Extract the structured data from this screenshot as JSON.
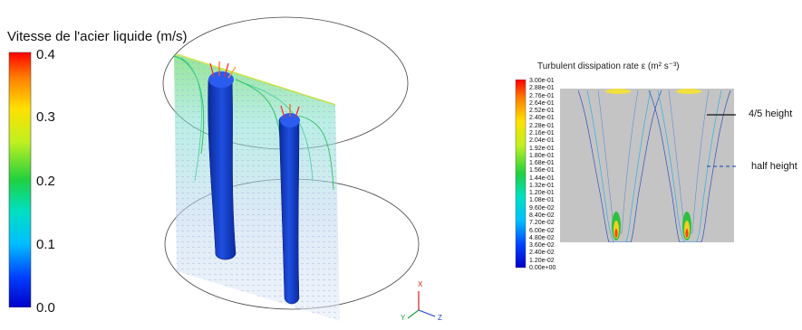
{
  "left_panel": {
    "colorbar_title": "Vitesse de l'acier liquide (m/s)",
    "ticks": [
      "0.4",
      "0.3",
      "0.2",
      "0.1",
      "0.0"
    ]
  },
  "right_panel": {
    "title": "Turbulent dissipation rate ε  (m² s⁻³)",
    "ticks": [
      "3.00e-01",
      "2.88e-01",
      "2.76e-01",
      "2.64e-01",
      "2.52e-01",
      "2.40e-01",
      "2.28e-01",
      "2.16e-01",
      "2.04e-01",
      "1.92e-01",
      "1.80e-01",
      "1.68e-01",
      "1.56e-01",
      "1.44e-01",
      "1.32e-01",
      "1.20e-01",
      "1.08e-01",
      "9.60e-02",
      "8.40e-02",
      "7.20e-02",
      "6.00e-02",
      "4.80e-02",
      "3.60e-02",
      "2.40e-02",
      "1.20e-02",
      "0.00e+00"
    ],
    "annotation_solid": "4/5 height",
    "annotation_dashed": "half height"
  },
  "axes_triad": {
    "x": "X",
    "y": "Y",
    "z": "Z"
  },
  "colors": {
    "jet": [
      "#0000c8",
      "#0040ff",
      "#00bfff",
      "#00e0c0",
      "#20d040",
      "#c0f020",
      "#ffe000",
      "#ff8000",
      "#ff0000"
    ],
    "nozzle_blue": "#1a3fc8",
    "field_gray": "#c4c4c4"
  }
}
